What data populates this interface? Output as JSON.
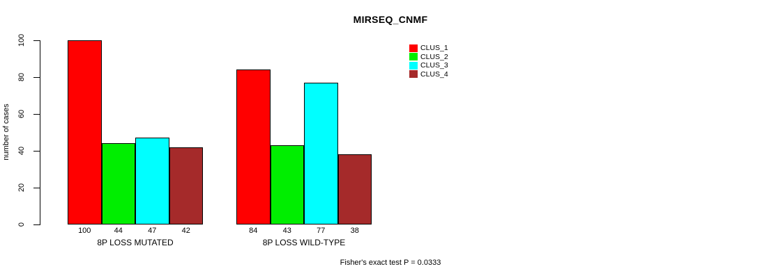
{
  "chart_data": {
    "type": "bar",
    "title": "MIRSEQ_CNMF",
    "ylabel": "number of cases",
    "xlabel": "",
    "categories": [
      "8P LOSS MUTATED",
      "8P LOSS WILD-TYPE"
    ],
    "series": [
      {
        "name": "CLUS_1",
        "color": "#FF0000",
        "values": [
          100,
          84
        ]
      },
      {
        "name": "CLUS_2",
        "color": "#00EE00",
        "values": [
          44,
          43
        ]
      },
      {
        "name": "CLUS_3",
        "color": "#00FFFF",
        "values": [
          47,
          77
        ]
      },
      {
        "name": "CLUS_4",
        "color": "#A52A2A",
        "values": [
          42,
          38
        ]
      }
    ],
    "yticks": [
      0,
      20,
      40,
      60,
      80,
      100
    ],
    "ylim": [
      0,
      100
    ],
    "grid": false,
    "bar_value_labels": true,
    "legend_position": "top-right",
    "annotation": "Fisher's exact test P = 0.0333"
  }
}
